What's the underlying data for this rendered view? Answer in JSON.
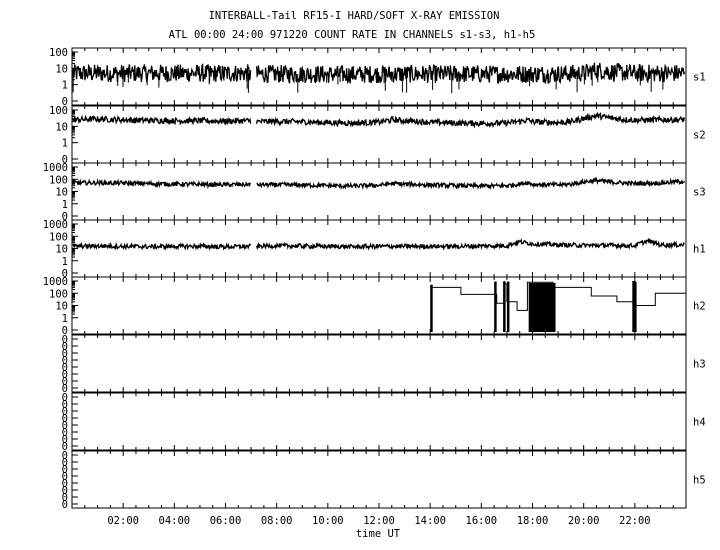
{
  "chart_data": {
    "type": "line",
    "title": "INTERBALL-Tail RF15-I HARD/SOFT X-RAY EMISSION",
    "subtitle": "ATL 00:00 24:00 971220  COUNT RATE IN CHANNELS s1-s3, h1-h5",
    "xlabel": "time UT",
    "x_ticks": [
      "02:00",
      "04:00",
      "06:00",
      "08:00",
      "10:00",
      "12:00",
      "14:00",
      "16:00",
      "18:00",
      "20:00",
      "22:00"
    ],
    "xlim_hours": [
      0,
      24
    ],
    "panels": [
      {
        "name": "s1",
        "yticks": [
          "100",
          "10",
          "1",
          "0"
        ],
        "gaps": [
          [
            7.0,
            7.2
          ]
        ],
        "series": [
          [
            0,
            5
          ],
          [
            1,
            5
          ],
          [
            2,
            5
          ],
          [
            3,
            5
          ],
          [
            4,
            5
          ],
          [
            5,
            5
          ],
          [
            6,
            5
          ],
          [
            7,
            5
          ],
          [
            7.2,
            4.5
          ],
          [
            8,
            4.5
          ],
          [
            9,
            4.5
          ],
          [
            10,
            4.3
          ],
          [
            11,
            4.3
          ],
          [
            12,
            4.5
          ],
          [
            13,
            4.5
          ],
          [
            14,
            4.5
          ],
          [
            15,
            4.5
          ],
          [
            16,
            4.5
          ],
          [
            17,
            4.5
          ],
          [
            18,
            4.5
          ],
          [
            19,
            4.6
          ],
          [
            20,
            5
          ],
          [
            20.5,
            8
          ],
          [
            21,
            6
          ],
          [
            22,
            5
          ],
          [
            23,
            5
          ],
          [
            24,
            5
          ]
        ]
      },
      {
        "name": "s2",
        "yticks": [
          "100",
          "10",
          "1",
          "0"
        ],
        "gaps": [
          [
            7.0,
            7.2
          ]
        ],
        "series": [
          [
            0,
            25
          ],
          [
            1,
            28
          ],
          [
            2,
            25
          ],
          [
            3,
            23
          ],
          [
            4,
            22
          ],
          [
            5,
            22
          ],
          [
            6,
            21
          ],
          [
            7,
            22
          ],
          [
            7.2,
            19
          ],
          [
            8,
            20
          ],
          [
            9,
            19
          ],
          [
            10,
            17
          ],
          [
            11,
            16
          ],
          [
            12,
            18
          ],
          [
            12.5,
            25
          ],
          [
            13,
            22
          ],
          [
            14,
            18
          ],
          [
            15,
            16
          ],
          [
            16,
            15
          ],
          [
            17,
            16
          ],
          [
            17.5,
            20
          ],
          [
            17.8,
            24
          ],
          [
            18,
            19
          ],
          [
            19,
            17
          ],
          [
            19.5,
            19
          ],
          [
            20,
            30
          ],
          [
            20.5,
            45
          ],
          [
            21,
            33
          ],
          [
            21.5,
            27
          ],
          [
            22,
            24
          ],
          [
            23,
            25
          ],
          [
            24,
            26
          ]
        ]
      },
      {
        "name": "s3",
        "yticks": [
          "1000",
          "100",
          "10",
          "1",
          "0"
        ],
        "gaps": [
          [
            7.0,
            7.2
          ]
        ],
        "series": [
          [
            0,
            50
          ],
          [
            1,
            52
          ],
          [
            2,
            48
          ],
          [
            3,
            44
          ],
          [
            4,
            40
          ],
          [
            5,
            38
          ],
          [
            6,
            36
          ],
          [
            7,
            38
          ],
          [
            7.2,
            35
          ],
          [
            8,
            36
          ],
          [
            9,
            34
          ],
          [
            10,
            30
          ],
          [
            11,
            28
          ],
          [
            12,
            32
          ],
          [
            12.5,
            45
          ],
          [
            13,
            40
          ],
          [
            14,
            34
          ],
          [
            15,
            30
          ],
          [
            16,
            28
          ],
          [
            17,
            30
          ],
          [
            17.5,
            40
          ],
          [
            17.8,
            55
          ],
          [
            18,
            38
          ],
          [
            19,
            35
          ],
          [
            19.5,
            40
          ],
          [
            20,
            60
          ],
          [
            20.5,
            80
          ],
          [
            21,
            60
          ],
          [
            21.5,
            50
          ],
          [
            22,
            45
          ],
          [
            23,
            50
          ],
          [
            24,
            70
          ]
        ]
      },
      {
        "name": "h1",
        "yticks": [
          "1000",
          "100",
          "10",
          "1",
          "0"
        ],
        "gaps": [
          [
            7.0,
            7.2
          ]
        ],
        "series": [
          [
            0,
            15
          ],
          [
            1,
            16
          ],
          [
            2,
            15
          ],
          [
            3,
            14
          ],
          [
            4,
            15
          ],
          [
            5,
            15
          ],
          [
            6,
            14
          ],
          [
            7,
            15
          ],
          [
            7.2,
            15
          ],
          [
            8,
            17
          ],
          [
            9,
            16
          ],
          [
            10,
            15
          ],
          [
            11,
            14
          ],
          [
            12,
            15
          ],
          [
            13,
            15
          ],
          [
            14,
            15
          ],
          [
            15,
            15
          ],
          [
            16,
            16
          ],
          [
            17,
            17
          ],
          [
            17.5,
            35
          ],
          [
            18,
            24
          ],
          [
            19,
            20
          ],
          [
            20,
            18
          ],
          [
            21,
            18
          ],
          [
            22,
            17
          ],
          [
            22.5,
            40
          ],
          [
            23,
            20
          ],
          [
            24,
            20
          ]
        ]
      },
      {
        "name": "h2",
        "yticks": [
          "1000",
          "100",
          "10",
          "1",
          "0"
        ],
        "steps": [
          [
            14.05,
            14.05,
            "v"
          ],
          [
            14.05,
            300,
            "h"
          ],
          [
            15.2,
            80,
            "h"
          ],
          [
            16.6,
            15,
            "h"
          ],
          [
            16.9,
            600,
            "h"
          ],
          [
            17.0,
            20,
            "h"
          ],
          [
            17.4,
            4,
            "h"
          ],
          [
            17.8,
            800,
            "h"
          ],
          [
            18.8,
            300,
            "h"
          ],
          [
            20.3,
            60,
            "h"
          ],
          [
            21.3,
            20,
            "h"
          ],
          [
            22.0,
            10,
            "h"
          ],
          [
            22.6,
            10,
            "h"
          ],
          [
            22.8,
            100,
            "h"
          ],
          [
            24.0,
            100,
            "h"
          ]
        ],
        "spikes": [
          [
            14.05,
            0,
            500
          ],
          [
            16.55,
            0,
            900
          ],
          [
            16.9,
            0,
            950
          ],
          [
            17.05,
            0,
            900
          ],
          [
            21.95,
            0,
            1000
          ],
          [
            22.02,
            0,
            900
          ]
        ],
        "filled_blocks": [
          [
            17.85,
            18.9
          ]
        ]
      },
      {
        "name": "h3",
        "yticks": [
          "0",
          "0",
          "0",
          "0",
          "0",
          "0",
          "0",
          "0"
        ],
        "series": []
      },
      {
        "name": "h4",
        "yticks": [
          "0",
          "0",
          "0",
          "0",
          "0",
          "0",
          "0",
          "0"
        ],
        "series": []
      },
      {
        "name": "h5",
        "yticks": [
          "0",
          "0",
          "0",
          "0",
          "0",
          "0",
          "0",
          "0"
        ],
        "series": []
      }
    ],
    "grid": false,
    "legend": "none"
  }
}
